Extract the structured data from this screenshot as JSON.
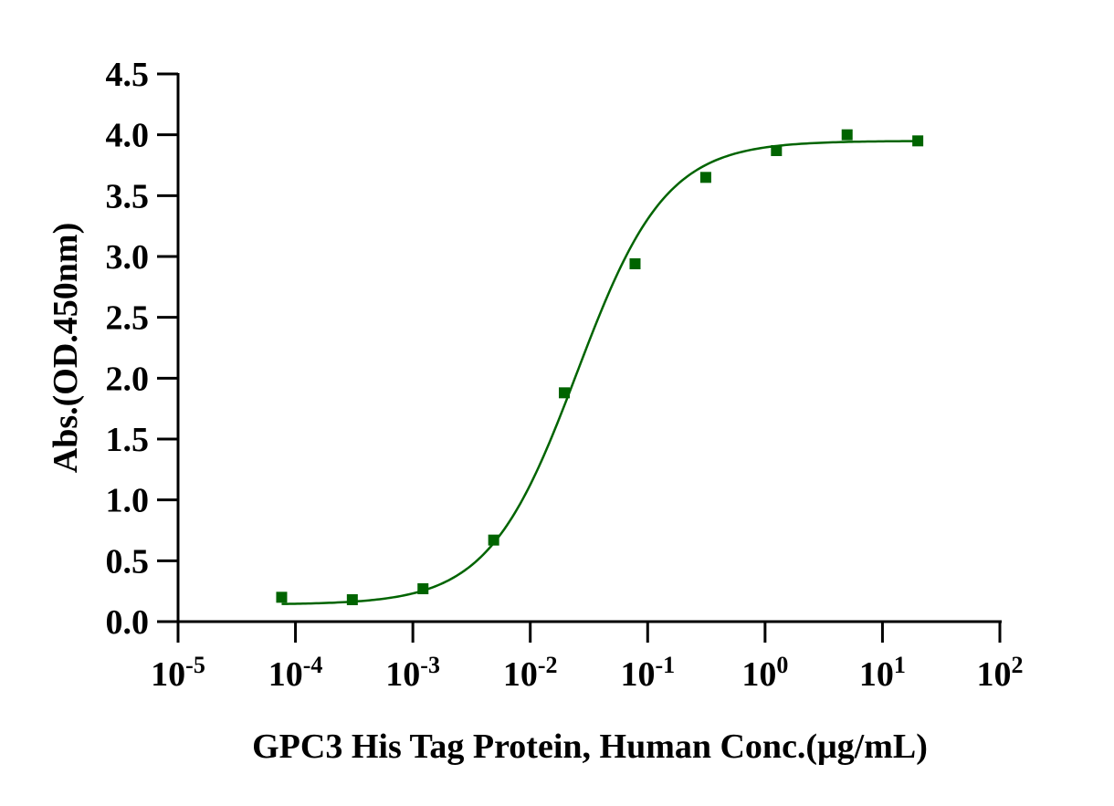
{
  "chart_data": {
    "type": "scatter",
    "title": "",
    "xlabel": "GPC3 His Tag Protein, Human  Conc.(μg/mL)",
    "ylabel": "Abs.(OD.450nm)",
    "x_scale": "log10",
    "xlim": [
      1e-05,
      100
    ],
    "ylim": [
      0,
      4.5
    ],
    "x_ticks": [
      {
        "base": "10",
        "exp": "-5"
      },
      {
        "base": "10",
        "exp": "-4"
      },
      {
        "base": "10",
        "exp": "-3"
      },
      {
        "base": "10",
        "exp": "-2"
      },
      {
        "base": "10",
        "exp": "-1"
      },
      {
        "base": "10",
        "exp": "0"
      },
      {
        "base": "10",
        "exp": "1"
      },
      {
        "base": "10",
        "exp": "2"
      }
    ],
    "y_ticks": [
      "0.0",
      "0.5",
      "1.0",
      "1.5",
      "2.0",
      "2.5",
      "3.0",
      "3.5",
      "4.0",
      "4.5"
    ],
    "grid": false,
    "color": "#006400",
    "series": [
      {
        "marker": "square",
        "x": [
          7.63e-05,
          0.000305,
          0.00122,
          0.00488,
          0.0195,
          0.0781,
          0.3125,
          1.25,
          5,
          20
        ],
        "y": [
          0.2,
          0.18,
          0.27,
          0.67,
          1.88,
          2.94,
          3.65,
          3.87,
          4.0,
          3.95
        ]
      }
    ],
    "fit_curve": {
      "model": "4PL",
      "bottom": 0.14,
      "top": 3.95,
      "ec50": 0.025,
      "hill": 1.15,
      "x_range": [
        7.63e-05,
        20
      ]
    }
  }
}
